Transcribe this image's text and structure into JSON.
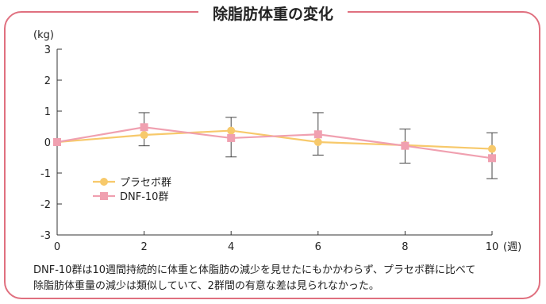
{
  "chart_data": {
    "type": "line",
    "title": "除脂肪体重の変化",
    "ylabel": "(kg)",
    "xlabel": "(週)",
    "x": [
      0,
      2,
      4,
      6,
      8,
      10
    ],
    "xlim": [
      0,
      10
    ],
    "ylim": [
      -3,
      3
    ],
    "xticks": [
      0,
      2,
      4,
      6,
      8,
      10
    ],
    "yticks": [
      3,
      2,
      1,
      0,
      -1,
      -2,
      -3
    ],
    "grid": false,
    "legend_position": "center-left",
    "series": [
      {
        "name": "プラセボ群",
        "color": "#f7c96b",
        "marker": "circle",
        "values": [
          0,
          0.23,
          0.37,
          0.0,
          -0.1,
          -0.22
        ]
      },
      {
        "name": "DNF-10群",
        "color": "#f0a0b0",
        "marker": "square",
        "values": [
          0,
          0.48,
          0.13,
          0.25,
          -0.12,
          -0.52
        ],
        "error_low": [
          0,
          -0.12,
          -0.48,
          -0.42,
          -0.68,
          -1.18
        ],
        "error_high": [
          0,
          0.95,
          0.8,
          0.95,
          0.42,
          0.3
        ]
      }
    ]
  },
  "caption": [
    "DNF-10群は10週間持続的に体重と体脂肪の減少を見せたにもかかわらず、プラセボ群に比べて",
    "除脂肪体重量の減少は類似していて、2群間の有意な差は見られなかった。"
  ]
}
